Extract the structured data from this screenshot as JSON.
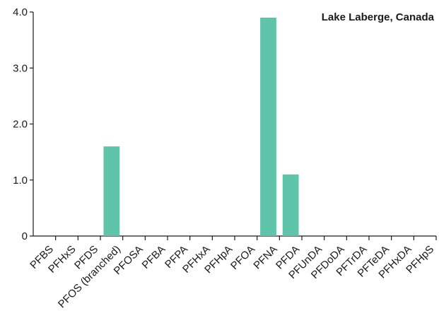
{
  "chart_data": {
    "type": "bar",
    "title": "Lake Laberge, Canada",
    "xlabel": "",
    "ylabel": "",
    "categories": [
      "PFBS",
      "PFHxS",
      "PFDS",
      "PFOS (branched)",
      "PFOSA",
      "PFBA",
      "PFPA",
      "PFHxA",
      "PFHpA",
      "PFOA",
      "PFNA",
      "PFDA",
      "PFUnDA",
      "PFDoDA",
      "PFTrDA",
      "PFTeDA",
      "PFHxDA",
      "PFHpS"
    ],
    "values": [
      0,
      0,
      0,
      1.6,
      0,
      0,
      0,
      0,
      0,
      0,
      3.9,
      1.1,
      0,
      0,
      0,
      0,
      0,
      0
    ],
    "ylim": [
      0,
      4.0
    ],
    "yticks": [
      "0",
      "1.0",
      "2.0",
      "3.0",
      "4.0"
    ],
    "ytick_values": [
      0,
      1,
      2,
      3,
      4
    ],
    "grid": false,
    "bar_color": "#5ec4aa"
  }
}
